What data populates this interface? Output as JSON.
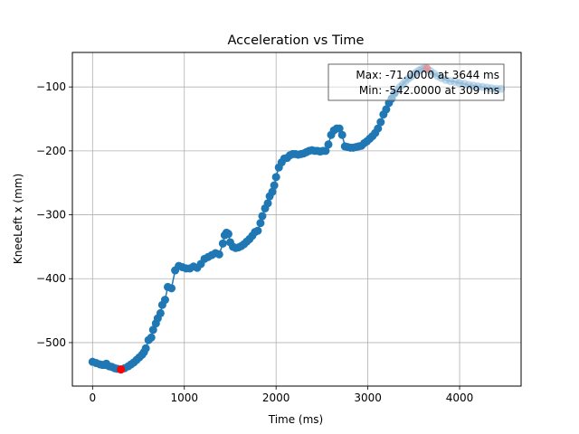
{
  "chart_data": {
    "type": "line",
    "title": "Acceleration vs Time",
    "xlabel": "Time (ms)",
    "ylabel": "KneeLeft x (mm)",
    "xlim": [
      -220,
      4670
    ],
    "ylim": [
      -568,
      -46
    ],
    "xticks": [
      0,
      1000,
      2000,
      3000,
      4000
    ],
    "yticks": [
      -500,
      -400,
      -300,
      -200,
      -100
    ],
    "grid": true,
    "colors": {
      "series": "#1f77b4",
      "extreme": "#ff0000"
    },
    "series": [
      {
        "x": [
          0,
          40,
          80,
          110,
          130,
          150,
          180,
          210,
          240,
          270,
          309,
          350,
          390,
          420,
          450,
          480,
          510,
          540,
          560,
          580,
          610,
          640,
          660,
          690,
          710,
          740,
          760,
          790,
          820,
          860,
          900,
          940,
          980,
          1020,
          1060,
          1100,
          1140,
          1180,
          1220,
          1260,
          1300,
          1340,
          1380,
          1420,
          1440,
          1460,
          1480,
          1500,
          1530,
          1560,
          1590,
          1620,
          1650,
          1680,
          1710,
          1740,
          1770,
          1800,
          1830,
          1850,
          1880,
          1910,
          1930,
          1960,
          1980,
          2000,
          2030,
          2060,
          2090,
          2120,
          2150,
          2180,
          2210,
          2240,
          2270,
          2300,
          2330,
          2360,
          2390,
          2420,
          2450,
          2480,
          2510,
          2540,
          2570,
          2600,
          2630,
          2660,
          2690,
          2720,
          2750,
          2780,
          2810,
          2840,
          2870,
          2900,
          2930,
          2960,
          2990,
          3020,
          3050,
          3080,
          3110,
          3140,
          3170,
          3200,
          3230,
          3260,
          3290,
          3320,
          3350,
          3380,
          3410,
          3440,
          3470,
          3500,
          3530,
          3560,
          3590,
          3620,
          3644,
          3680,
          3720,
          3760,
          3800,
          3850,
          3900,
          3950,
          4000,
          4050,
          4100,
          4150,
          4200,
          4250,
          4300,
          4350,
          4400,
          4450
        ],
        "y": [
          -530,
          -532,
          -534,
          -535,
          -535,
          -533,
          -537,
          -538,
          -540,
          -541,
          -542,
          -540,
          -537,
          -534,
          -531,
          -527,
          -523,
          -519,
          -515,
          -509,
          -496,
          -492,
          -480,
          -470,
          -462,
          -454,
          -441,
          -433,
          -413,
          -415,
          -387,
          -380,
          -382,
          -384,
          -384,
          -381,
          -383,
          -377,
          -369,
          -366,
          -363,
          -360,
          -362,
          -345,
          -332,
          -328,
          -330,
          -343,
          -350,
          -352,
          -351,
          -349,
          -346,
          -342,
          -338,
          -333,
          -327,
          -325,
          -313,
          -302,
          -290,
          -282,
          -271,
          -264,
          -254,
          -241,
          -226,
          -218,
          -212,
          -211,
          -207,
          -205,
          -205,
          -206,
          -205,
          -204,
          -202,
          -200,
          -199,
          -200,
          -200,
          -201,
          -200,
          -200,
          -190,
          -175,
          -168,
          -165,
          -165,
          -175,
          -193,
          -194,
          -195,
          -195,
          -194,
          -193,
          -192,
          -188,
          -185,
          -181,
          -177,
          -172,
          -165,
          -155,
          -143,
          -135,
          -125,
          -118,
          -110,
          -105,
          -100,
          -96,
          -91,
          -87,
          -84,
          -80,
          -77,
          -74,
          -72,
          -71,
          -72,
          -75,
          -79,
          -83,
          -86,
          -89,
          -91,
          -92,
          -94,
          -95,
          -97,
          -98,
          -99,
          -100,
          -101,
          -102,
          -103,
          -103
        ],
        "marker_until_x": 3300
      }
    ],
    "extremes": {
      "max": {
        "x": 3644,
        "y": -71
      },
      "min": {
        "x": 309,
        "y": -542
      }
    },
    "annotation": [
      "Max: -71.0000 at 3644 ms",
      "Min: -542.0000 at 309 ms"
    ]
  }
}
